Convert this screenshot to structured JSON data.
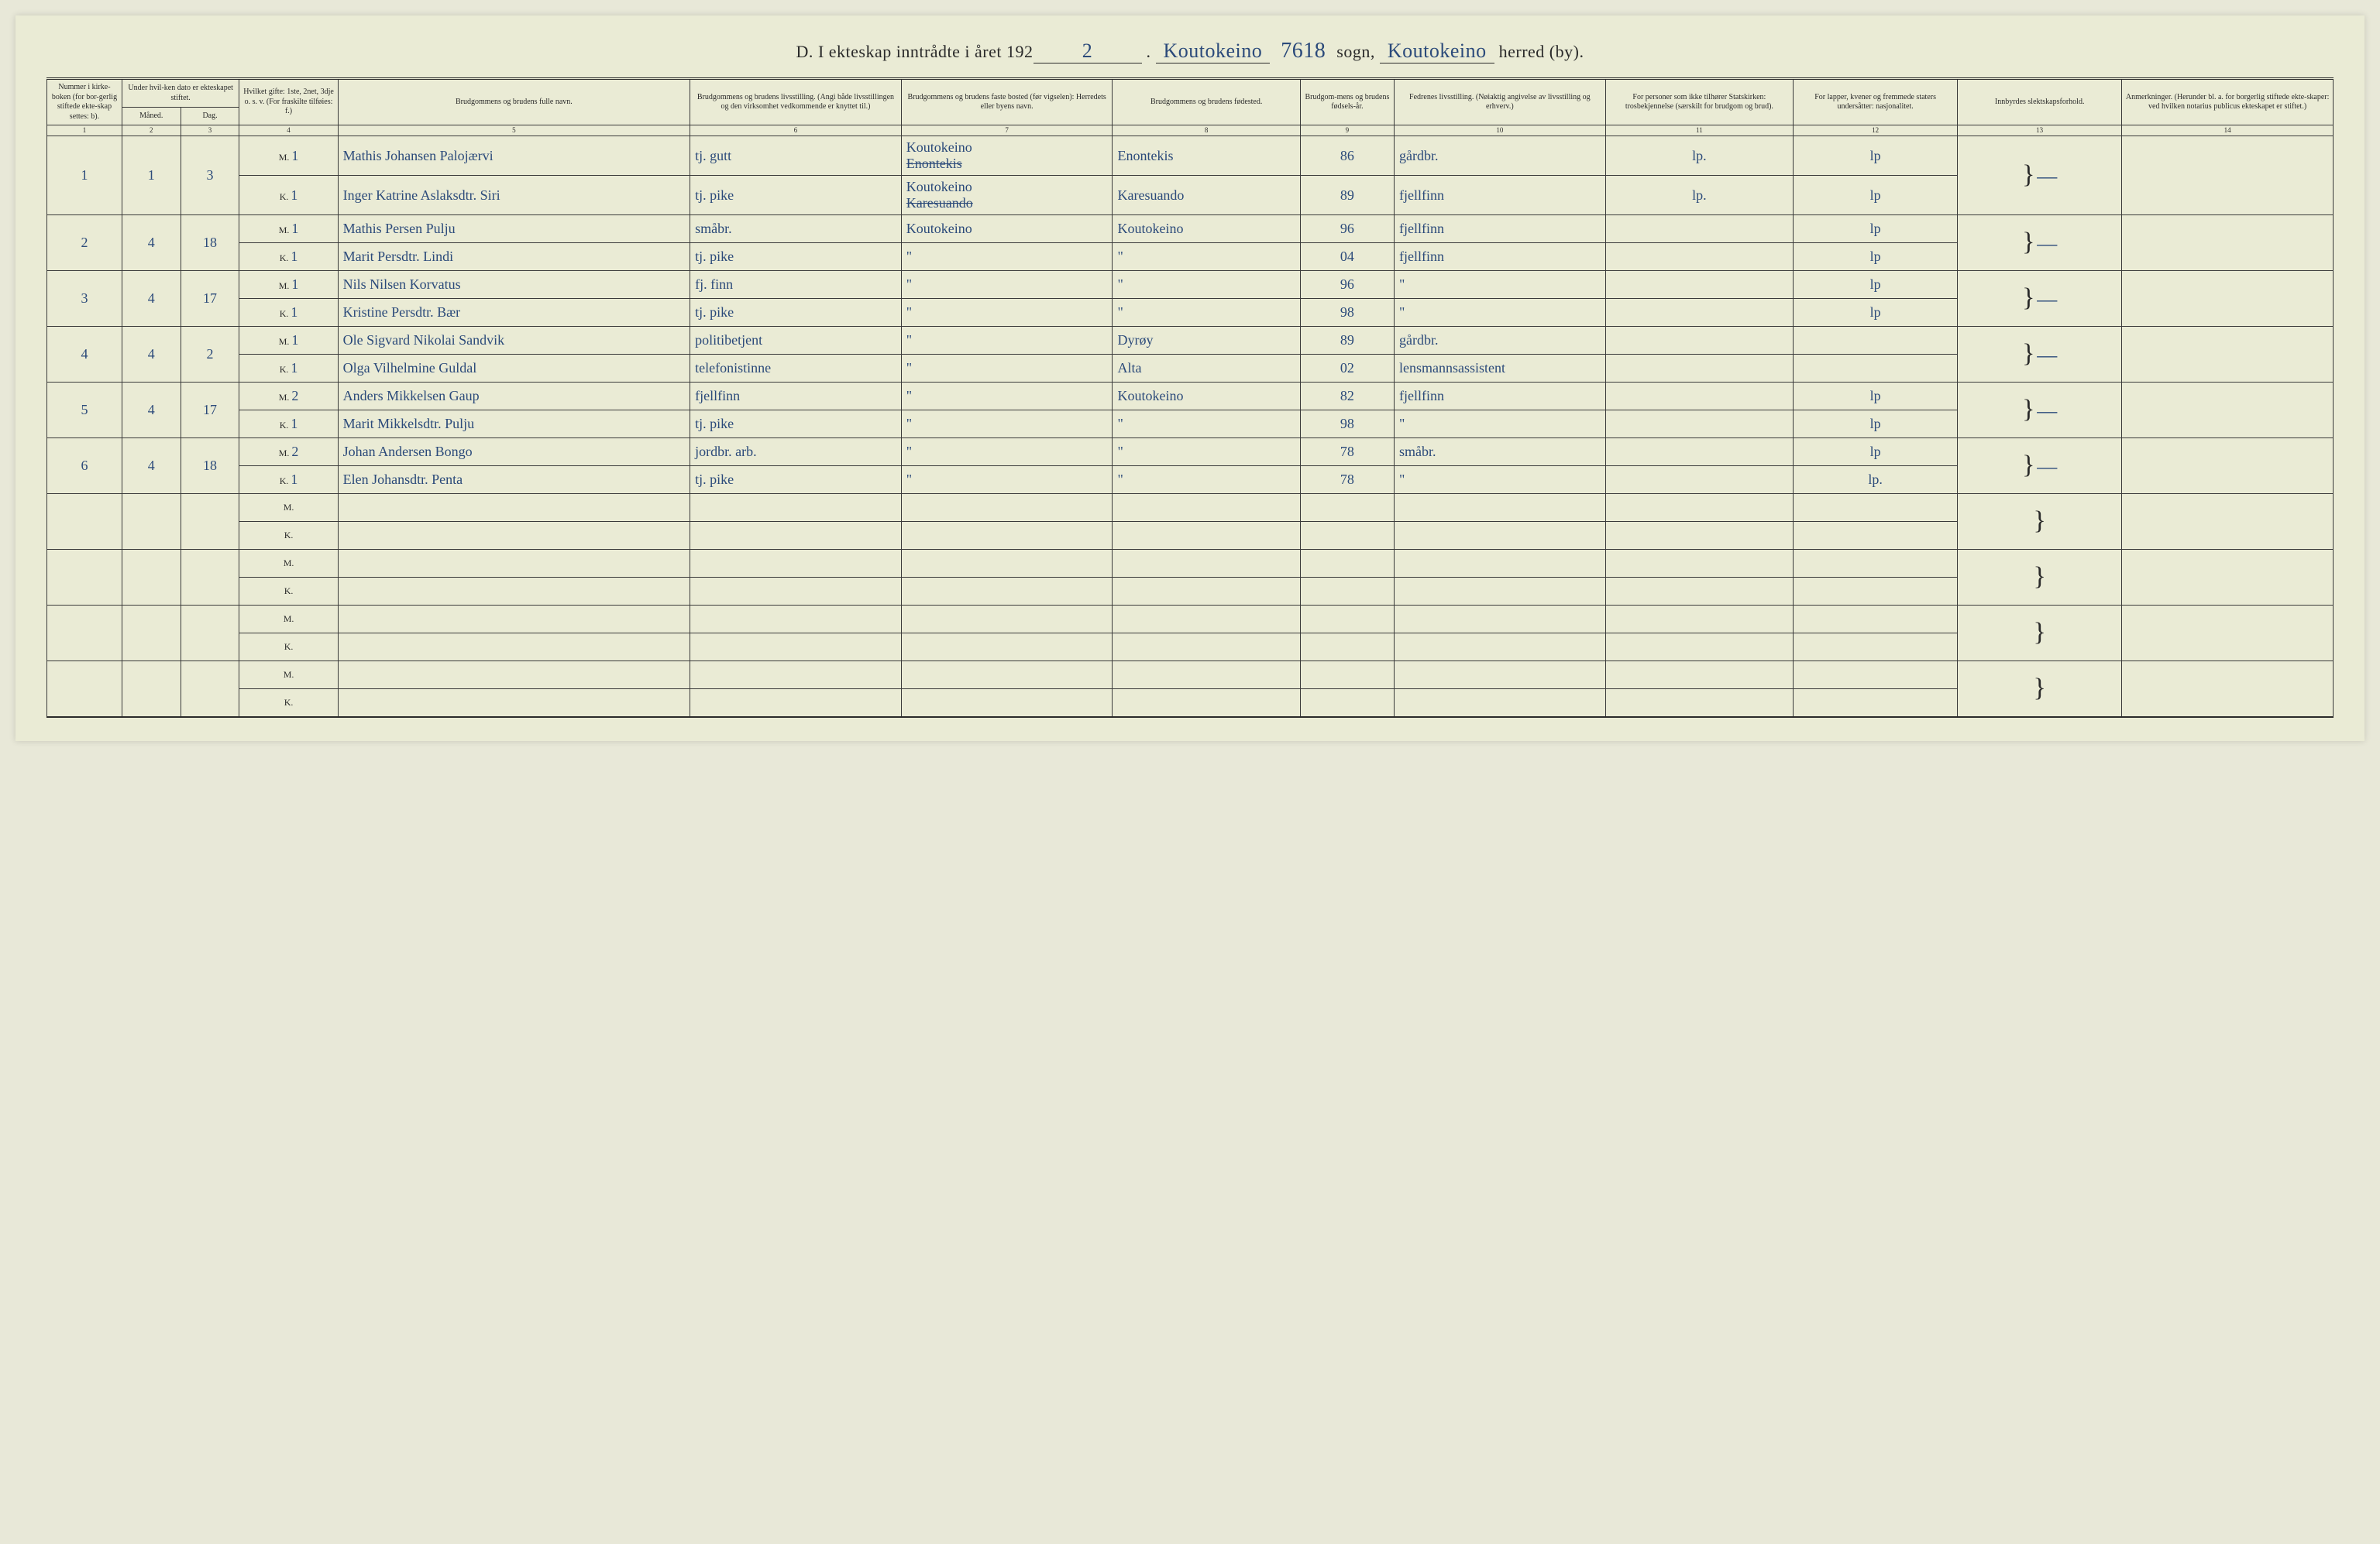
{
  "title": {
    "prefix": "D.",
    "text1": "I ekteskap inntrådte i året 192",
    "year_suffix": "2",
    "sogn_hand": "Koutokeino",
    "id_hand": "7618",
    "sogn_label": "sogn,",
    "herred_hand": "Koutokeino",
    "herred_label": "herred (by)."
  },
  "headers": {
    "c1": "Nummer i kirke-boken (for bor-gerlig stiftede ekte-skap settes: b).",
    "c23_top": "Under hvil-ken dato er ekteskapet stiftet.",
    "c2": "Måned.",
    "c3": "Dag.",
    "c4": "Hvilket gifte: 1ste, 2net, 3dje o. s. v. (For fraskilte tilføies: f.)",
    "c5": "Brudgommens og brudens fulle navn.",
    "c6": "Brudgommens og brudens livsstilling. (Angi både livsstillingen og den virksomhet vedkommende er knyttet til.)",
    "c7": "Brudgommens og brudens faste bosted (før vigselen): Herredets eller byens navn.",
    "c8": "Brudgommens og brudens fødested.",
    "c9": "Brudgom-mens og brudens fødsels-år.",
    "c10": "Fedrenes livsstilling. (Nøiaktig angivelse av livsstilling og erhverv.)",
    "c11": "For personer som ikke tilhører Statskirken: trosbekjennelse (særskilt for brudgom og brud).",
    "c12": "For lapper, kvener og fremmede staters undersåtter: nasjonalitet.",
    "c13": "Innbyrdes slektskapsforhold.",
    "c14": "Anmerkninger. (Herunder bl. a. for borgerlig stiftede ekte-skaper: ved hvilken notarius publicus ekteskapet er stiftet.)"
  },
  "colnums": [
    "1",
    "2",
    "3",
    "4",
    "5",
    "6",
    "7",
    "8",
    "9",
    "10",
    "11",
    "12",
    "13",
    "14"
  ],
  "rows": [
    {
      "num": "1",
      "maned": "1",
      "dag": "3",
      "m": {
        "mk": "M.",
        "gifte": "1",
        "navn": "Mathis Johansen Palojærvi",
        "stilling": "tj. gutt",
        "bosted": "Koutokeino",
        "bosted_strike": "Enontekis",
        "fodested": "Enontekis",
        "aar": "86",
        "far": "gårdbr.",
        "c11": "lp.",
        "c12": "lp"
      },
      "k": {
        "mk": "K.",
        "gifte": "1",
        "navn": "Inger Katrine Aslaksdtr. Siri",
        "stilling": "tj. pike",
        "bosted": "Koutokeino",
        "bosted_strike": "Karesuando",
        "fodested": "Karesuando",
        "aar": "89",
        "far": "fjellfinn",
        "c11": "lp.",
        "c12": "lp"
      },
      "c13": "—"
    },
    {
      "num": "2",
      "maned": "4",
      "dag": "18",
      "m": {
        "mk": "M.",
        "gifte": "1",
        "navn": "Mathis Persen Pulju",
        "stilling": "småbr.",
        "bosted": "Koutokeino",
        "fodested": "Koutokeino",
        "aar": "96",
        "far": "fjellfinn",
        "c11": "",
        "c12": "lp"
      },
      "k": {
        "mk": "K.",
        "gifte": "1",
        "navn": "Marit Persdtr. Lindi",
        "stilling": "tj. pike",
        "bosted": "\"",
        "fodested": "\"",
        "aar": "04",
        "far": "fjellfinn",
        "c11": "",
        "c12": "lp"
      },
      "c13": "—"
    },
    {
      "num": "3",
      "maned": "4",
      "dag": "17",
      "m": {
        "mk": "M.",
        "gifte": "1",
        "navn": "Nils Nilsen Korvatus",
        "stilling": "fj. finn",
        "bosted": "\"",
        "fodested": "\"",
        "aar": "96",
        "far": "\"",
        "c11": "",
        "c12": "lp"
      },
      "k": {
        "mk": "K.",
        "gifte": "1",
        "navn": "Kristine Persdtr. Bær",
        "stilling": "tj. pike",
        "bosted": "\"",
        "fodested": "\"",
        "aar": "98",
        "far": "\"",
        "c11": "",
        "c12": "lp"
      },
      "c13": "—"
    },
    {
      "num": "4",
      "maned": "4",
      "dag": "2",
      "m": {
        "mk": "M.",
        "gifte": "1",
        "navn": "Ole Sigvard Nikolai Sandvik",
        "stilling": "politibetjent",
        "bosted": "\"",
        "fodested": "Dyrøy",
        "aar": "89",
        "far": "gårdbr.",
        "c11": "",
        "c12": ""
      },
      "k": {
        "mk": "K.",
        "gifte": "1",
        "navn": "Olga Vilhelmine Guldal",
        "stilling": "telefonistinne",
        "bosted": "\"",
        "fodested": "Alta",
        "aar": "02",
        "far": "lensmannsassistent",
        "c11": "",
        "c12": ""
      },
      "c13": "—"
    },
    {
      "num": "5",
      "maned": "4",
      "dag": "17",
      "m": {
        "mk": "M.",
        "gifte": "2",
        "navn": "Anders Mikkelsen Gaup",
        "stilling": "fjellfinn",
        "bosted": "\"",
        "fodested": "Koutokeino",
        "aar": "82",
        "far": "fjellfinn",
        "c11": "",
        "c12": "lp"
      },
      "k": {
        "mk": "K.",
        "gifte": "1",
        "navn": "Marit Mikkelsdtr. Pulju",
        "stilling": "tj. pike",
        "bosted": "\"",
        "fodested": "\"",
        "aar": "98",
        "far": "\"",
        "c11": "",
        "c12": "lp"
      },
      "c13": "—"
    },
    {
      "num": "6",
      "maned": "4",
      "dag": "18",
      "m": {
        "mk": "M.",
        "gifte": "2",
        "navn": "Johan Andersen Bongo",
        "stilling": "jordbr. arb.",
        "bosted": "\"",
        "fodested": "\"",
        "aar": "78",
        "far": "småbr.",
        "c11": "",
        "c12": "lp"
      },
      "k": {
        "mk": "K.",
        "gifte": "1",
        "navn": "Elen Johansdtr. Penta",
        "stilling": "tj. pike",
        "bosted": "\"",
        "fodested": "\"",
        "aar": "78",
        "far": "\"",
        "c11": "",
        "c12": "lp."
      },
      "c13": "—"
    }
  ],
  "empty_pairs": 4,
  "mk_labels": {
    "m": "M.",
    "k": "K."
  }
}
